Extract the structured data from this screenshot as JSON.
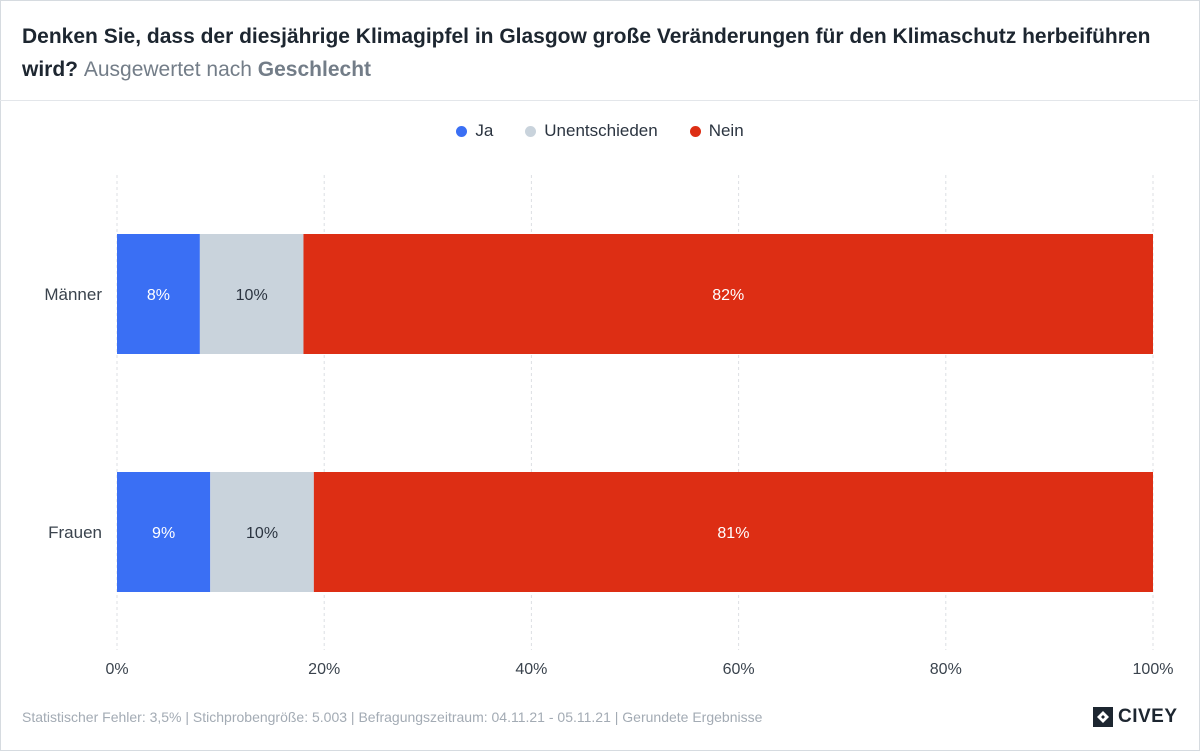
{
  "header": {
    "title": "Denken Sie, dass der diesjährige Klimagipfel in Glasgow große Veränderungen für den Klimaschutz herbeiführen wird?",
    "subtitle_prefix": "Ausgewertet nach",
    "subtitle_strong": "Geschlecht"
  },
  "chart_data": {
    "type": "bar",
    "orientation": "horizontal",
    "stacked": true,
    "categories": [
      "Männer",
      "Frauen"
    ],
    "series": [
      {
        "name": "Ja",
        "values": [
          8,
          9
        ],
        "labels": [
          "8%",
          "9%"
        ],
        "color": "#3a6ff4",
        "label_color": "#ffffff"
      },
      {
        "name": "Unentschieden",
        "values": [
          10,
          10
        ],
        "labels": [
          "10%",
          "10%"
        ],
        "color": "#c9d3dc",
        "label_color": "#2b3440"
      },
      {
        "name": "Nein",
        "values": [
          82,
          81
        ],
        "labels": [
          "82%",
          "81%"
        ],
        "color": "#dd2e14",
        "label_color": "#ffffff"
      }
    ],
    "xlim": [
      0,
      100
    ],
    "xticks": [
      0,
      20,
      40,
      60,
      80,
      100
    ],
    "xtick_labels": [
      "0%",
      "20%",
      "40%",
      "60%",
      "80%",
      "100%"
    ],
    "grid": true,
    "legend_position": "top-center"
  },
  "footer": {
    "note": "Statistischer Fehler: 3,5% | Stichprobengröße: 5.003 | Befragungszeitraum: 04.11.21 - 05.11.21 | Gerundete Ergebnisse",
    "brand": "CIVEY"
  },
  "colors": {
    "grid": "#dcdfe3",
    "axis_text": "#3a434d"
  }
}
